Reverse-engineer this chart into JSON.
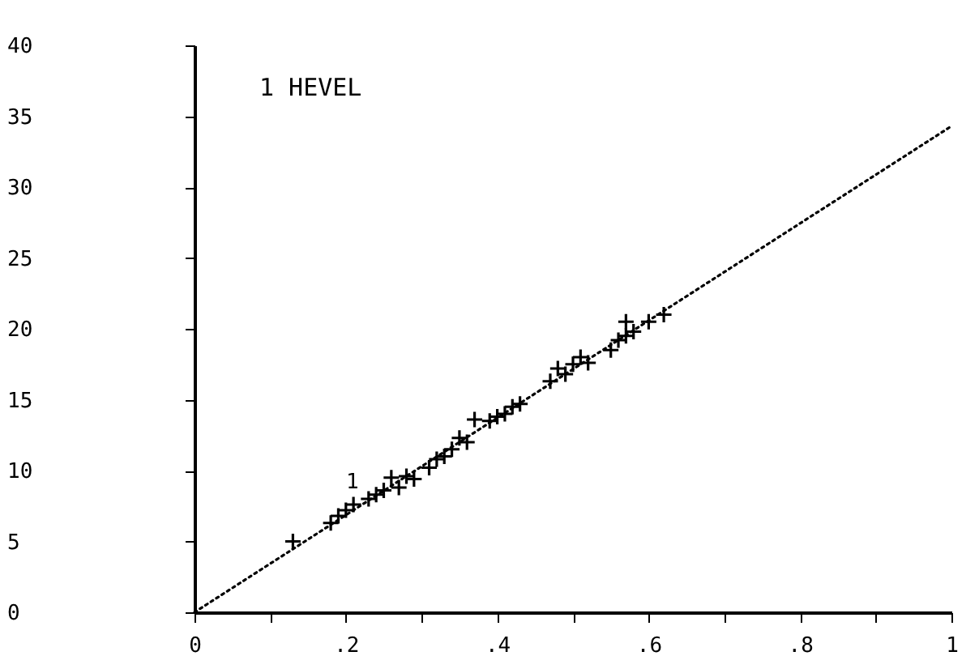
{
  "chart_data": {
    "type": "scatter",
    "title": "1 HEVEL",
    "annotations": [
      {
        "text": "1",
        "x": 0.2,
        "y": 8.5
      }
    ],
    "xlim": [
      0,
      1
    ],
    "ylim": [
      0,
      40
    ],
    "xticks": [
      0,
      {
        "value": 0.1,
        "label": null
      },
      {
        "value": 0.2,
        "label": ".2"
      },
      {
        "value": 0.3,
        "label": null
      },
      {
        "value": 0.4,
        "label": ".4"
      },
      {
        "value": 0.5,
        "label": null
      },
      {
        "value": 0.6,
        "label": ".6"
      },
      {
        "value": 0.7,
        "label": null
      },
      {
        "value": 0.8,
        "label": ".8"
      },
      {
        "value": 0.9,
        "label": null
      },
      1
    ],
    "yticks": [
      0,
      5,
      10,
      15,
      20,
      25,
      30,
      35,
      40
    ],
    "grid": false,
    "marker": "cross",
    "series": [
      {
        "type": "scatter",
        "color": "#000000",
        "x": [
          0.13,
          0.18,
          0.19,
          0.2,
          0.21,
          0.23,
          0.24,
          0.25,
          0.26,
          0.27,
          0.28,
          0.29,
          0.31,
          0.32,
          0.33,
          0.34,
          0.35,
          0.36,
          0.37,
          0.39,
          0.4,
          0.41,
          0.42,
          0.43,
          0.47,
          0.48,
          0.49,
          0.5,
          0.51,
          0.52,
          0.55,
          0.56,
          0.57,
          0.57,
          0.58,
          0.6,
          0.62
        ],
        "values": [
          5,
          6.3,
          6.8,
          7.2,
          7.6,
          8,
          8.3,
          8.6,
          9.5,
          8.8,
          9.6,
          9.4,
          10.2,
          10.8,
          11,
          11.5,
          12.3,
          12,
          13.6,
          13.5,
          13.8,
          14,
          14.5,
          14.7,
          16.3,
          17.2,
          16.8,
          17.5,
          18,
          17.6,
          18.5,
          19.2,
          19.5,
          20.5,
          19.8,
          20.5,
          21
        ]
      },
      {
        "type": "line",
        "color": "#000000",
        "line_style": "dotted",
        "marker": "none",
        "x": [
          0,
          1
        ],
        "values": [
          0,
          34.3
        ]
      }
    ]
  }
}
